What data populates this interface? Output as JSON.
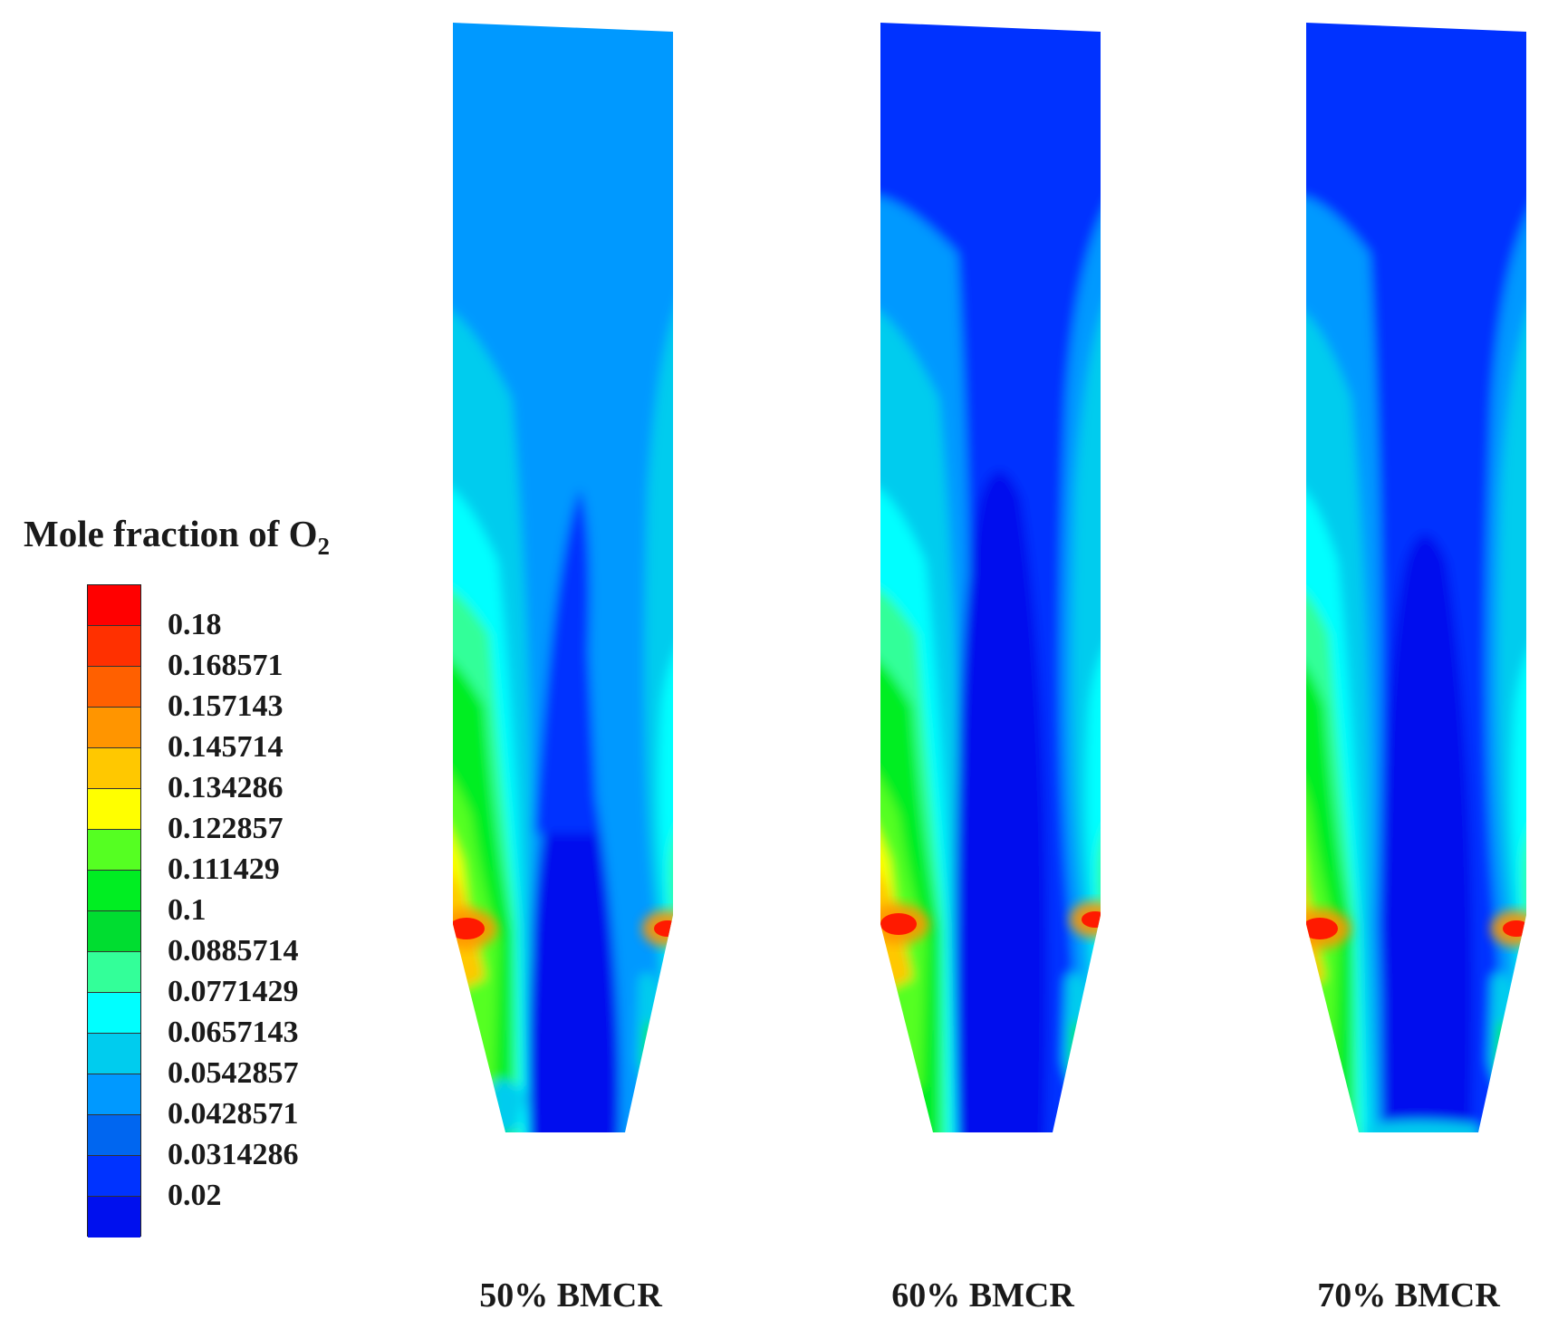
{
  "legend": {
    "title_main": "Mole fraction of O",
    "title_sub": "2",
    "levels": [
      "0.18",
      "0.168571",
      "0.157143",
      "0.145714",
      "0.134286",
      "0.122857",
      "0.111429",
      "0.1",
      "0.0885714",
      "0.0771429",
      "0.0657143",
      "0.0542857",
      "0.0428571",
      "0.0314286",
      "0.02"
    ],
    "colors": [
      "#ff0000",
      "#ff3000",
      "#ff6000",
      "#ff9500",
      "#ffc800",
      "#ffff00",
      "#55ff22",
      "#00ee22",
      "#00dd30",
      "#33ff99",
      "#00ffff",
      "#00ccee",
      "#0099ff",
      "#0066f0",
      "#0033ff",
      "#0010ee"
    ]
  },
  "panels": [
    {
      "caption": "50% BMCR"
    },
    {
      "caption": "60% BMCR"
    },
    {
      "caption": "70% BMCR"
    }
  ]
}
